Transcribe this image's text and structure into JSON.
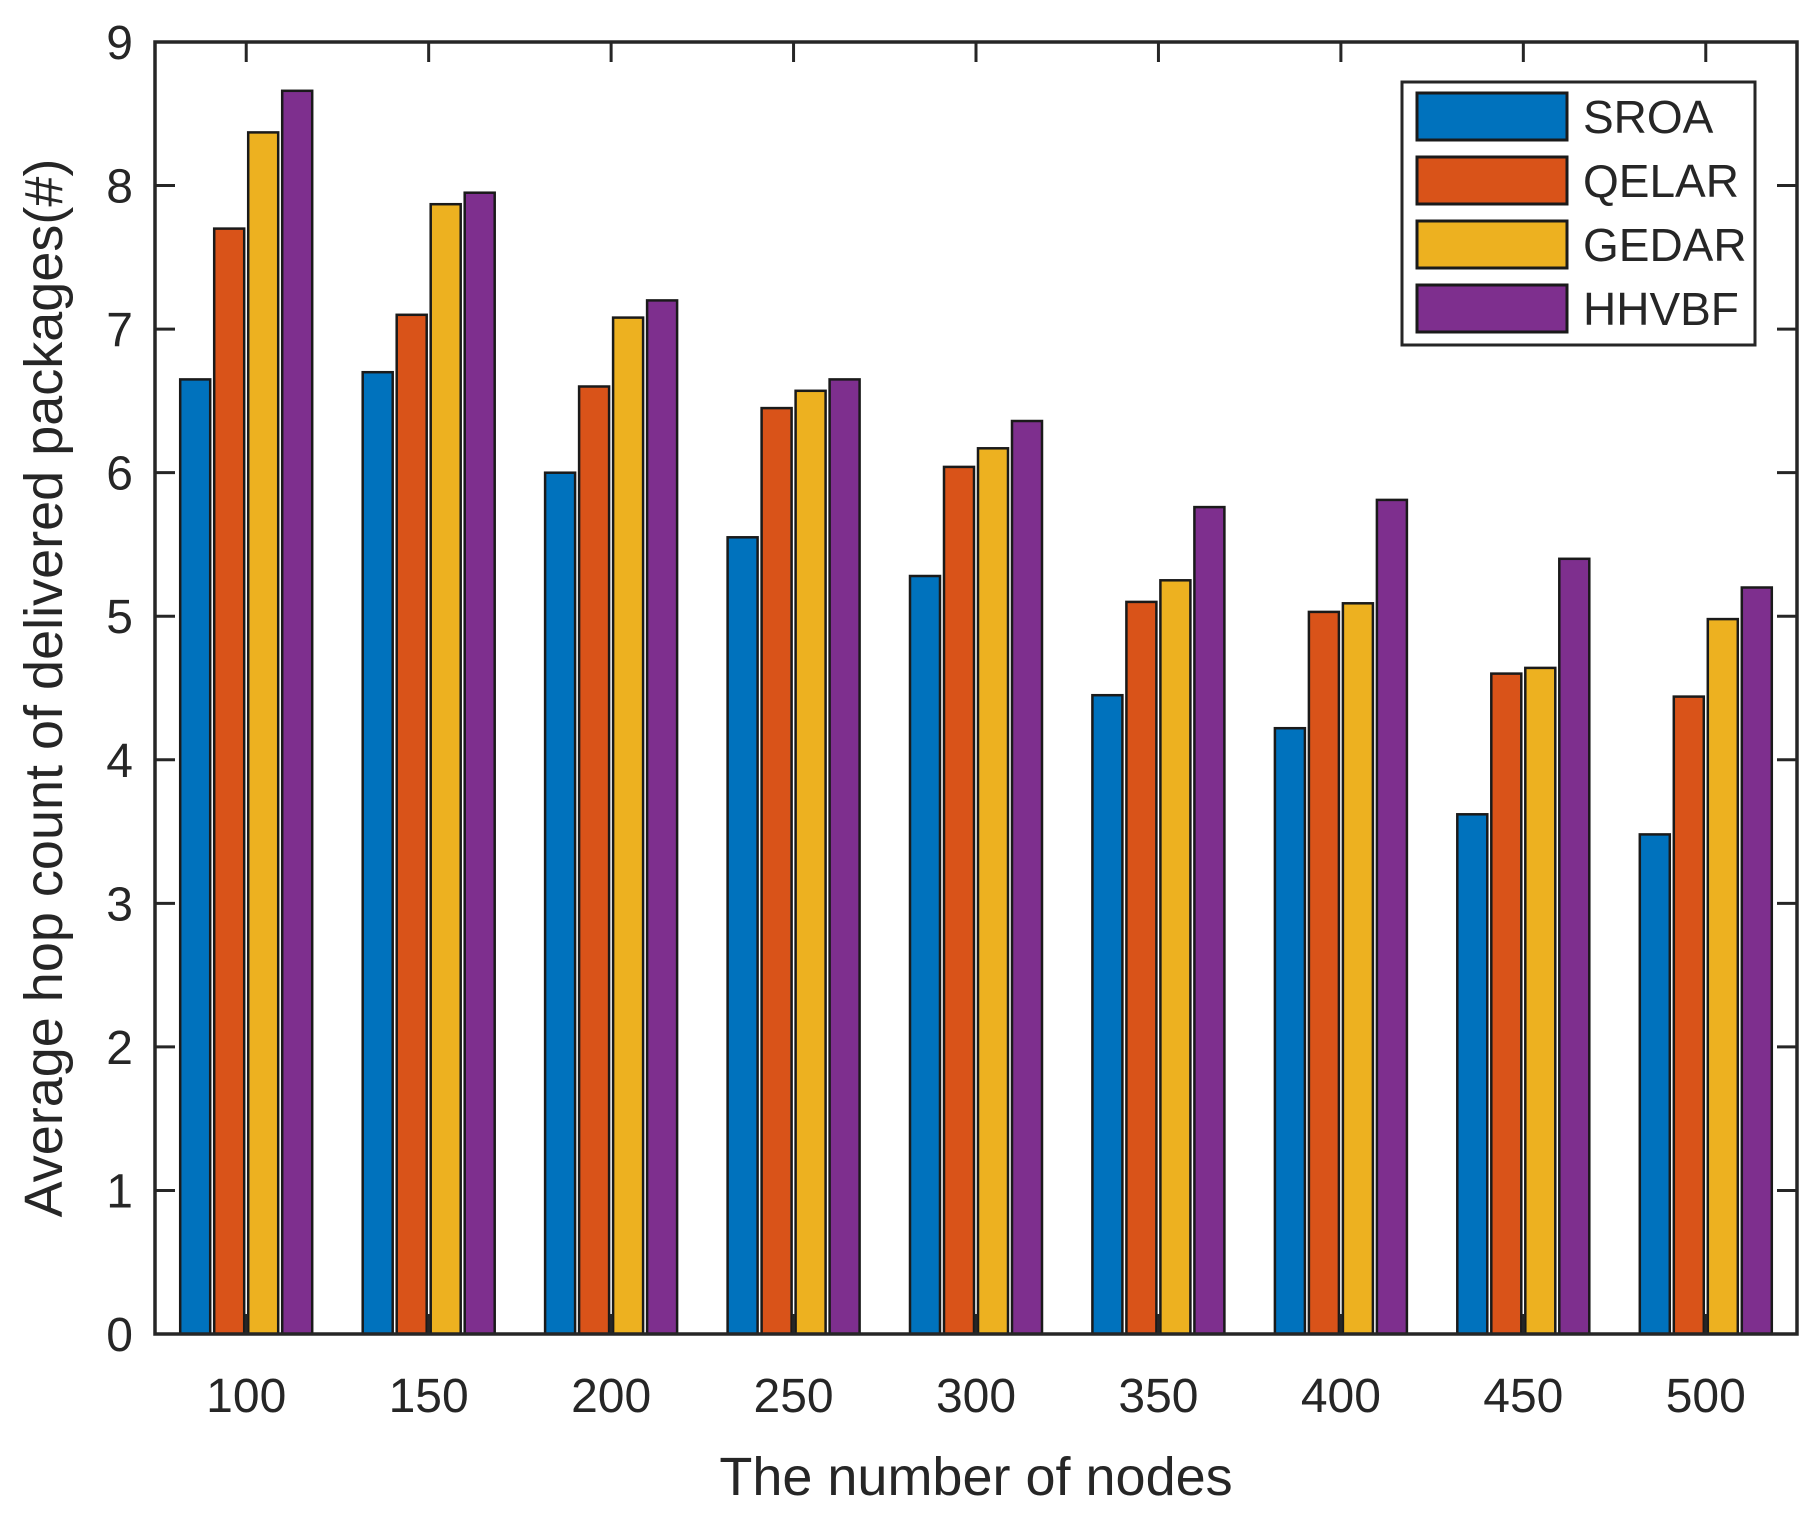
{
  "figure": {
    "background": "#ffffff",
    "axis_color": "#262626",
    "bar_edge_color": "#1a1a1a"
  },
  "chart_data": {
    "type": "bar",
    "title": "",
    "xlabel": "The number of nodes",
    "ylabel": "Average hop count of delivered packages(#)",
    "categories": [
      "100",
      "150",
      "200",
      "250",
      "300",
      "350",
      "400",
      "450",
      "500"
    ],
    "series": [
      {
        "name": "SROA",
        "color": "#0072BD",
        "values": [
          6.65,
          6.7,
          6.0,
          5.55,
          5.28,
          4.45,
          4.22,
          3.62,
          3.48
        ]
      },
      {
        "name": "QELAR",
        "color": "#D95319",
        "values": [
          7.7,
          7.1,
          6.6,
          6.45,
          6.04,
          5.1,
          5.03,
          4.6,
          4.44
        ]
      },
      {
        "name": "GEDAR",
        "color": "#EDB120",
        "values": [
          8.37,
          7.87,
          7.08,
          6.57,
          6.17,
          5.25,
          5.09,
          4.64,
          4.98
        ]
      },
      {
        "name": "HHVBF",
        "color": "#7E2F8E",
        "values": [
          8.66,
          7.95,
          7.2,
          6.65,
          6.36,
          5.76,
          5.81,
          5.4,
          5.2
        ]
      }
    ],
    "ylim": [
      0,
      9
    ],
    "yticks": [
      0,
      1,
      2,
      3,
      4,
      5,
      6,
      7,
      8,
      9
    ],
    "grid": false,
    "legend_position": "top-right",
    "legend_entries": [
      "SROA",
      "QELAR",
      "GEDAR",
      "HHVBF"
    ]
  }
}
